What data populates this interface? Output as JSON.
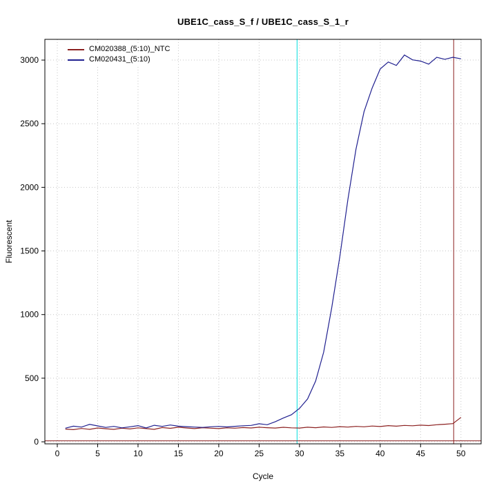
{
  "chart_data": {
    "type": "line",
    "title": "UBE1C_cass_S_f / UBE1C_cass_S_1_r",
    "xlabel": "Cycle",
    "ylabel": "Fluorescent",
    "xlim": [
      -1.54,
      52.5
    ],
    "ylim": [
      -16,
      3163
    ],
    "x_ticks": [
      0,
      5,
      10,
      15,
      20,
      25,
      30,
      35,
      40,
      45,
      50
    ],
    "y_ticks": [
      0,
      500,
      1000,
      1500,
      2000,
      2500,
      3000
    ],
    "grid": "dotted",
    "grid_color": "#c4c4c4",
    "legend_position": "top-left",
    "series": [
      {
        "name": "CM020388_(5:10)_NTC",
        "color": "#8b1f1f",
        "x": [
          1,
          2,
          3,
          4,
          5,
          6,
          7,
          8,
          9,
          10,
          11,
          12,
          13,
          14,
          15,
          16,
          17,
          18,
          19,
          20,
          21,
          22,
          23,
          24,
          25,
          26,
          27,
          28,
          29,
          30,
          31,
          32,
          33,
          34,
          35,
          36,
          37,
          38,
          39,
          40,
          41,
          42,
          43,
          44,
          45,
          46,
          47,
          48,
          49,
          50
        ],
        "values": [
          100,
          96,
          105,
          98,
          109,
          103,
          98,
          107,
          101,
          110,
          104,
          98,
          112,
          106,
          115,
          109,
          104,
          111,
          107,
          104,
          110,
          107,
          112,
          109,
          115,
          111,
          108,
          114,
          110,
          108,
          115,
          111,
          117,
          113,
          119,
          116,
          121,
          118,
          124,
          120,
          127,
          123,
          129,
          126,
          131,
          128,
          134,
          138,
          143,
          192
        ]
      },
      {
        "name": "CM020431_(5:10)",
        "color": "#1f1f8f",
        "x": [
          1,
          2,
          3,
          4,
          5,
          6,
          7,
          8,
          9,
          10,
          11,
          12,
          13,
          14,
          15,
          16,
          17,
          18,
          19,
          20,
          21,
          22,
          23,
          24,
          25,
          26,
          27,
          28,
          29,
          30,
          31,
          32,
          33,
          34,
          35,
          36,
          37,
          38,
          39,
          40,
          41,
          42,
          43,
          44,
          45,
          46,
          47,
          48,
          49,
          50
        ],
        "values": [
          107,
          123,
          116,
          137,
          125,
          113,
          121,
          110,
          118,
          127,
          109,
          130,
          121,
          132,
          123,
          119,
          116,
          113,
          118,
          121,
          117,
          122,
          126,
          129,
          142,
          134,
          158,
          187,
          213,
          263,
          337,
          478,
          705,
          1055,
          1455,
          1905,
          2300,
          2595,
          2780,
          2930,
          2985,
          2958,
          3040,
          3002,
          2992,
          2968,
          3022,
          3006,
          3022,
          3010
        ]
      }
    ],
    "reference_lines": [
      {
        "orientation": "vertical",
        "value": 29.7,
        "color": "#00dddd",
        "name": "ct-threshold-line"
      },
      {
        "orientation": "vertical",
        "value": 49.1,
        "color": "#8b1f1f",
        "name": "end-cycle-marker-line"
      },
      {
        "orientation": "horizontal",
        "value": 8,
        "color": "#8b1f1f",
        "name": "baseline-line"
      }
    ]
  }
}
